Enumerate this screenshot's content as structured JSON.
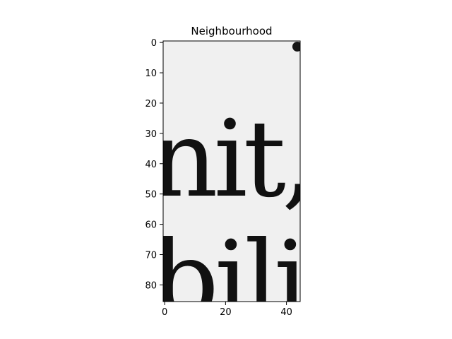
{
  "chart_data": {
    "type": "heatmap",
    "title": "Neighbourhood",
    "xlabel": "",
    "ylabel": "",
    "colormap": "gray",
    "image_shape": [
      86,
      45
    ],
    "xlim": [
      -0.5,
      44.5
    ],
    "ylim": [
      85.5,
      -0.5
    ],
    "xticks": [
      0,
      20,
      40
    ],
    "xtick_labels": [
      "0",
      "20",
      "40"
    ],
    "yticks": [
      0,
      10,
      20,
      30,
      40,
      50,
      60,
      70,
      80
    ],
    "ytick_labels": [
      "0",
      "10",
      "20",
      "30",
      "40",
      "50",
      "60",
      "70",
      "80"
    ],
    "image_text_lines": [
      {
        "text": "nit,",
        "baseline_row": 50
      },
      {
        "text": "bili",
        "baseline_row": 90
      }
    ],
    "grid": false,
    "colors": {
      "background": "#f0f0f0",
      "ink": "#111111",
      "frame": "#000000"
    }
  }
}
